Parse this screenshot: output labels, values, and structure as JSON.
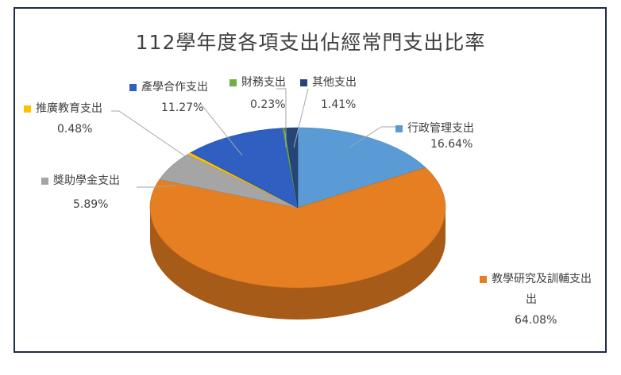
{
  "chart_data": {
    "type": "pie",
    "title": "112學年度各項支出佔經常門支出比率",
    "slices": [
      {
        "label": "行政管理支出",
        "value": 16.64,
        "display": "16.64%",
        "color": "#5b9bd5"
      },
      {
        "label": "教學研究及訓輔支出",
        "value": 64.08,
        "display": "64.08%",
        "color": "#e67e22"
      },
      {
        "label": "獎助學金支出",
        "value": 5.89,
        "display": "5.89%",
        "color": "#a5a5a5"
      },
      {
        "label": "推廣教育支出",
        "value": 0.48,
        "display": "0.48%",
        "color": "#ffc000"
      },
      {
        "label": "產學合作支出",
        "value": 11.27,
        "display": "11.27%",
        "color": "#2e5fc1"
      },
      {
        "label": "財務支出",
        "value": 0.23,
        "display": "0.23%",
        "color": "#70ad47"
      },
      {
        "label": "其他支出",
        "value": 1.41,
        "display": "1.41%",
        "color": "#264478"
      }
    ]
  }
}
